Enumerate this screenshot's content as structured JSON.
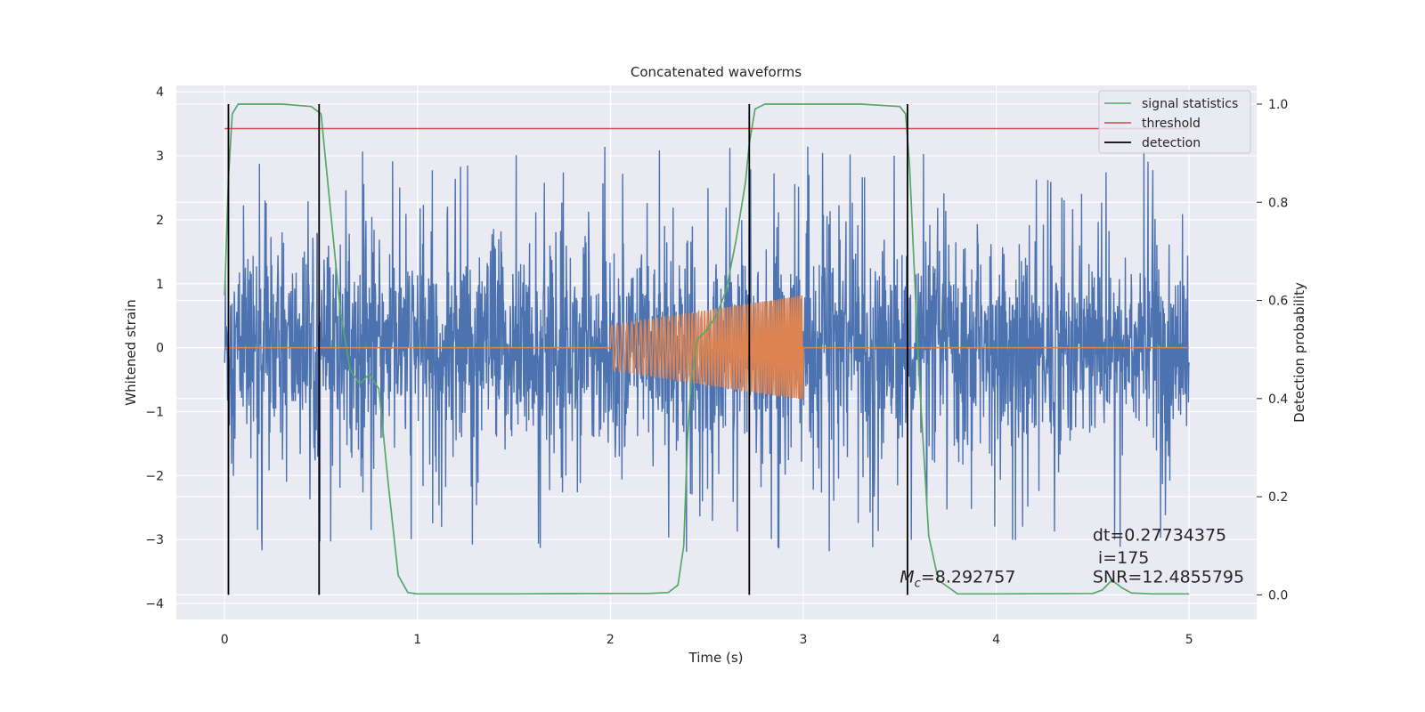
{
  "chart_data": {
    "type": "line",
    "title": "Concatenated waveforms",
    "xlabel": "Time (s)",
    "ylabel_left": "Whitened strain",
    "ylabel_right": "Detection probability",
    "xlim": [
      -0.25,
      5.35
    ],
    "ylim_left": [
      -4.25,
      4.1
    ],
    "ylim_right": [
      -0.05,
      1.038
    ],
    "xticks": [
      0,
      1,
      2,
      3,
      4,
      5
    ],
    "xtick_labels": [
      "0",
      "1",
      "2",
      "3",
      "4",
      "5"
    ],
    "yticks_left": [
      4,
      3,
      2,
      1,
      0,
      -1,
      -2,
      -3,
      -4
    ],
    "ytick_labels_left": [
      "4",
      "3",
      "2",
      "1",
      "0",
      "−1",
      "−2",
      "−3",
      "−4"
    ],
    "yticks_right": [
      1.0,
      0.8,
      0.6,
      0.4,
      0.2,
      0.0
    ],
    "ytick_labels_right": [
      "1.0",
      "0.8",
      "0.6",
      "0.4",
      "0.2",
      "0.0"
    ],
    "grid": true,
    "legend_position": "top-right",
    "series": [
      {
        "kind": "noise",
        "axis": "left",
        "color": "#4c72b0",
        "x_range": [
          0,
          5
        ],
        "amplitude_typical": 0.9,
        "peak_max": 3.7,
        "peak_min": -3.85
      },
      {
        "kind": "chirp",
        "axis": "left",
        "color": "#dd8452",
        "x_range": [
          0,
          5
        ],
        "chirp_start": 2.0,
        "chirp_end": 3.0,
        "amplitude_start": 0.35,
        "amplitude_end": 0.82
      },
      {
        "name": "signal statistics",
        "axis": "right",
        "color": "#55a868",
        "x": [
          0.0,
          0.02,
          0.04,
          0.07,
          0.1,
          0.3,
          0.45,
          0.5,
          0.55,
          0.6,
          0.65,
          0.7,
          0.75,
          0.8,
          0.85,
          0.9,
          0.95,
          1.0,
          1.5,
          2.0,
          2.2,
          2.3,
          2.35,
          2.38,
          2.4,
          2.42,
          2.45,
          2.5,
          2.55,
          2.6,
          2.65,
          2.7,
          2.72,
          2.75,
          2.8,
          2.9,
          3.1,
          3.3,
          3.5,
          3.53,
          3.55,
          3.6,
          3.65,
          3.7,
          3.8,
          4.0,
          4.5,
          4.55,
          4.6,
          4.65,
          4.7,
          4.8,
          5.0
        ],
        "y": [
          0.61,
          0.85,
          0.98,
          1.0,
          1.0,
          1.0,
          0.995,
          0.98,
          0.78,
          0.58,
          0.46,
          0.43,
          0.45,
          0.42,
          0.22,
          0.04,
          0.005,
          0.002,
          0.002,
          0.003,
          0.003,
          0.005,
          0.02,
          0.1,
          0.32,
          0.44,
          0.52,
          0.54,
          0.57,
          0.62,
          0.72,
          0.84,
          0.92,
          0.99,
          1.0,
          1.0,
          1.0,
          1.0,
          0.995,
          0.98,
          0.88,
          0.45,
          0.12,
          0.03,
          0.002,
          0.002,
          0.003,
          0.01,
          0.03,
          0.015,
          0.004,
          0.002,
          0.002
        ]
      },
      {
        "name": "threshold",
        "axis": "right",
        "color": "#c44e52",
        "x": [
          0.0,
          5.0
        ],
        "y": [
          0.95,
          0.95
        ]
      },
      {
        "name": "detection",
        "axis": "right",
        "color": "#000000",
        "vlines": [
          0.02,
          0.49,
          2.72,
          3.54
        ],
        "ymin": 0.0,
        "ymax": 1.0
      }
    ],
    "annotations": [
      {
        "text": "dt=0.27734375",
        "x": 4.5,
        "y": -3.02
      },
      {
        "text": " i=175",
        "x": 4.5,
        "y": -3.37
      },
      {
        "text": "SNR=12.4855795",
        "x": 4.5,
        "y": -3.67
      },
      {
        "text_main": "M",
        "text_sub": "c",
        "text_rest": "=8.292757",
        "x": 3.5,
        "y": -3.67
      }
    ]
  }
}
